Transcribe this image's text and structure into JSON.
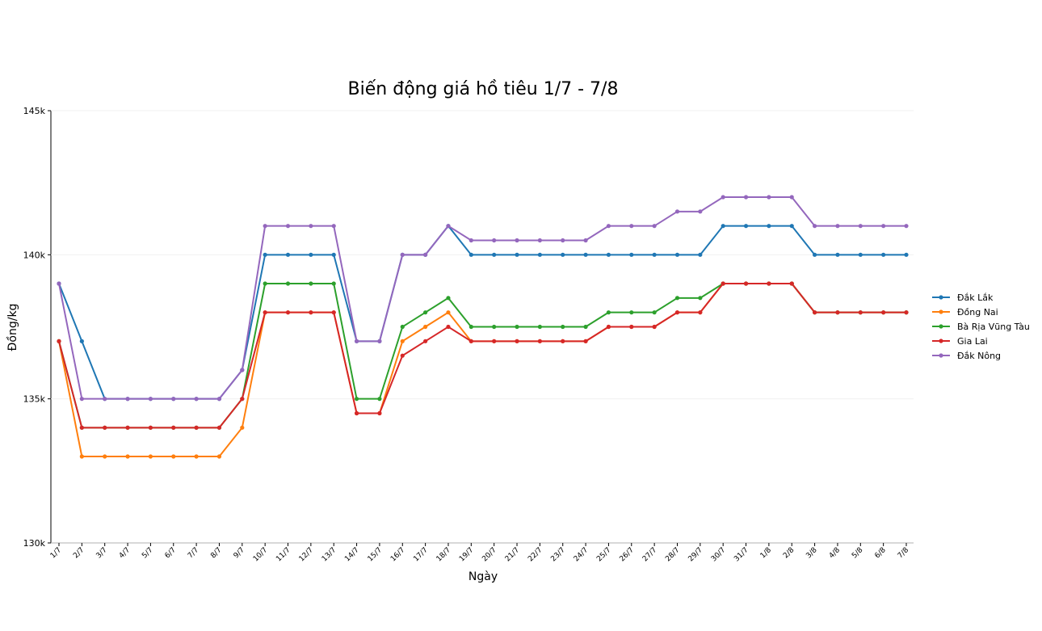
{
  "chart_data": {
    "type": "line",
    "title": "Biến động giá hồ tiêu 1/7 - 7/8",
    "xlabel": "Ngày",
    "ylabel": "Đồng/kg",
    "categories": [
      "1/7",
      "2/7",
      "3/7",
      "4/7",
      "5/7",
      "6/7",
      "7/7",
      "8/7",
      "9/7",
      "10/7",
      "11/7",
      "12/7",
      "13/7",
      "14/7",
      "15/7",
      "16/7",
      "17/7",
      "18/7",
      "19/7",
      "20/7",
      "21/7",
      "22/7",
      "23/7",
      "24/7",
      "25/7",
      "26/7",
      "27/7",
      "28/7",
      "29/7",
      "30/7",
      "31/7",
      "1/8",
      "2/8",
      "3/8",
      "4/8",
      "5/8",
      "6/8",
      "7/8"
    ],
    "series": [
      {
        "name": "Đắk Lắk",
        "color": "#1f77b4",
        "values": [
          139000,
          137000,
          135000,
          135000,
          135000,
          135000,
          135000,
          135000,
          136000,
          140000,
          140000,
          140000,
          140000,
          137000,
          137000,
          140000,
          140000,
          141000,
          140000,
          140000,
          140000,
          140000,
          140000,
          140000,
          140000,
          140000,
          140000,
          140000,
          140000,
          141000,
          141000,
          141000,
          141000,
          140000,
          140000,
          140000,
          140000,
          140000
        ]
      },
      {
        "name": "Đồng Nai",
        "color": "#ff7f0e",
        "values": [
          137000,
          133000,
          133000,
          133000,
          133000,
          133000,
          133000,
          133000,
          134000,
          138000,
          138000,
          138000,
          138000,
          134500,
          134500,
          137000,
          137500,
          138000,
          137000,
          137000,
          137000,
          137000,
          137000,
          137000,
          137500,
          137500,
          137500,
          138000,
          138000,
          139000,
          139000,
          139000,
          139000,
          138000,
          138000,
          138000,
          138000,
          138000
        ]
      },
      {
        "name": "Bà Rịa Vũng Tàu",
        "color": "#2ca02c",
        "values": [
          137000,
          134000,
          134000,
          134000,
          134000,
          134000,
          134000,
          134000,
          135000,
          139000,
          139000,
          139000,
          139000,
          135000,
          135000,
          137500,
          138000,
          138500,
          137500,
          137500,
          137500,
          137500,
          137500,
          137500,
          138000,
          138000,
          138000,
          138500,
          138500,
          139000,
          139000,
          139000,
          139000,
          138000,
          138000,
          138000,
          138000,
          138000
        ]
      },
      {
        "name": "Gia Lai",
        "color": "#d62728",
        "values": [
          137000,
          134000,
          134000,
          134000,
          134000,
          134000,
          134000,
          134000,
          135000,
          138000,
          138000,
          138000,
          138000,
          134500,
          134500,
          136500,
          137000,
          137500,
          137000,
          137000,
          137000,
          137000,
          137000,
          137000,
          137500,
          137500,
          137500,
          138000,
          138000,
          139000,
          139000,
          139000,
          139000,
          138000,
          138000,
          138000,
          138000,
          138000
        ]
      },
      {
        "name": "Đắk Nông",
        "color": "#9467bd",
        "values": [
          139000,
          135000,
          135000,
          135000,
          135000,
          135000,
          135000,
          135000,
          136000,
          141000,
          141000,
          141000,
          141000,
          137000,
          137000,
          140000,
          140000,
          141000,
          140500,
          140500,
          140500,
          140500,
          140500,
          140500,
          141000,
          141000,
          141000,
          141500,
          141500,
          142000,
          142000,
          142000,
          142000,
          141000,
          141000,
          141000,
          141000,
          141000
        ]
      }
    ],
    "ylim": [
      130000,
      145000
    ],
    "yticks": [
      {
        "value": 130000,
        "label": "130k"
      },
      {
        "value": 135000,
        "label": "135k"
      },
      {
        "value": 140000,
        "label": "140k"
      },
      {
        "value": 145000,
        "label": "145k"
      }
    ],
    "grid": true,
    "legend": "right"
  }
}
